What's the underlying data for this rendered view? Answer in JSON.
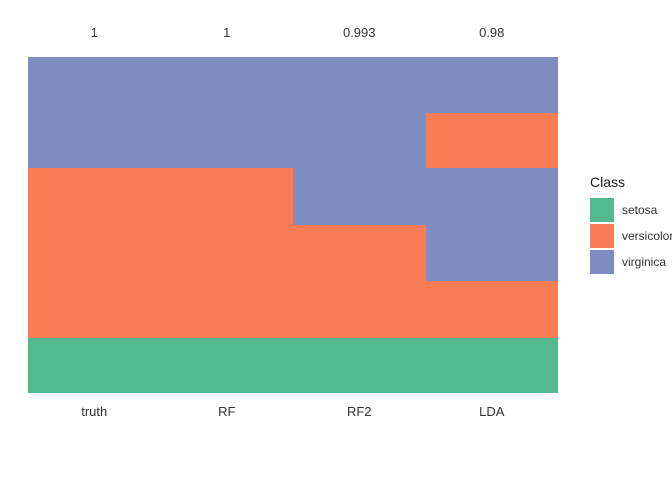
{
  "chart_data": {
    "type": "heatmap",
    "title": "",
    "description": "Class-prediction comparison plot: each column is a classifier result colored by predicted iris class, with accuracy values printed above each column",
    "background": "#ffffff",
    "legend_position": "right",
    "grid": false,
    "classes": [
      {
        "name": "setosa",
        "color": "#53b98e"
      },
      {
        "name": "versicolor",
        "color": "#f87d54"
      },
      {
        "name": "virginica",
        "color": "#7d8dc3"
      }
    ],
    "columns": [
      {
        "label": "truth",
        "value_label": "1",
        "segments": [
          {
            "class_name": "virginica",
            "frac": 0.331
          },
          {
            "class_name": "versicolor",
            "frac": 0.505
          },
          {
            "class_name": "setosa",
            "frac": 0.164
          }
        ]
      },
      {
        "label": "RF",
        "value_label": "1",
        "segments": [
          {
            "class_name": "virginica",
            "frac": 0.331
          },
          {
            "class_name": "versicolor",
            "frac": 0.505
          },
          {
            "class_name": "setosa",
            "frac": 0.164
          }
        ]
      },
      {
        "label": "RF2",
        "value_label": "0.993",
        "segments": [
          {
            "class_name": "virginica",
            "frac": 0.501
          },
          {
            "class_name": "versicolor",
            "frac": 0.335
          },
          {
            "class_name": "setosa",
            "frac": 0.164
          }
        ]
      },
      {
        "label": "LDA",
        "value_label": "0.98",
        "segments": [
          {
            "class_name": "virginica",
            "frac": 0.167
          },
          {
            "class_name": "versicolor",
            "frac": 0.164
          },
          {
            "class_name": "virginica",
            "frac": 0.337
          },
          {
            "class_name": "versicolor",
            "frac": 0.168
          },
          {
            "class_name": "setosa",
            "frac": 0.164
          }
        ]
      }
    ],
    "legend": {
      "title": "Class",
      "entries": [
        "setosa",
        "versicolor",
        "virginica"
      ]
    }
  }
}
